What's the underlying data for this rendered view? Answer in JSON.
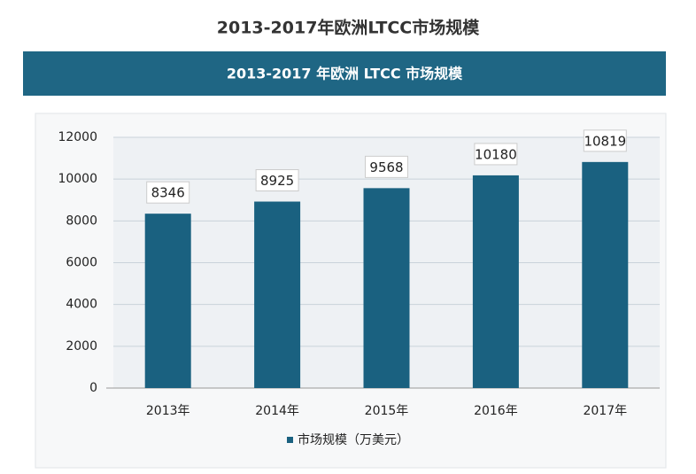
{
  "heading": "2013-2017年欧洲LTCC市场规模",
  "chart_data": {
    "type": "bar",
    "title": "2013-2017 年欧洲 LTCC 市场规模",
    "categories": [
      "2013年",
      "2014年",
      "2015年",
      "2016年",
      "2017年"
    ],
    "series": [
      {
        "name": "市场规模（万美元）",
        "color": "#1a6180",
        "values": [
          8346,
          8925,
          9568,
          10180,
          10819
        ]
      }
    ],
    "ylim": [
      0,
      12000
    ],
    "yticks": [
      0,
      2000,
      4000,
      6000,
      8000,
      10000,
      12000
    ],
    "grid": true,
    "legend": "bottom"
  }
}
